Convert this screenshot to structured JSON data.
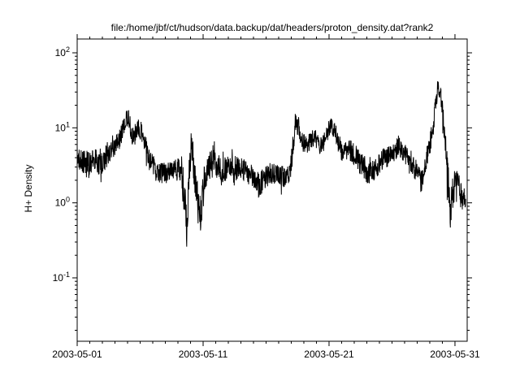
{
  "chart_data": {
    "type": "line",
    "title": "file:/home/jbf/ct/hudson/data.backup/dat/headers/proton_density.dat?rank2",
    "xlabel": "",
    "ylabel": "H+ Density",
    "y_scale": "log",
    "grid": false,
    "legend": false,
    "x_unit": "days since 2003-05-01",
    "x_domain_days": [
      0,
      30.97
    ],
    "y_log10_domain": [
      -1.845,
      2.184
    ],
    "ylim": [
      0.014,
      153
    ],
    "x_ticks": [
      {
        "day": 0,
        "label": "2003-05-01"
      },
      {
        "day": 10,
        "label": "2003-05-11"
      },
      {
        "day": 20,
        "label": "2003-05-21"
      },
      {
        "day": 30,
        "label": "2003-05-31"
      }
    ],
    "y_tick_exponents": [
      -1,
      0,
      1,
      2
    ],
    "colors": {
      "line": "#000000",
      "axes": "#000000",
      "text": "#000000",
      "background": "#ffffff"
    },
    "samples": 1600,
    "noise_seed": 20030531,
    "series": [
      {
        "name": "H+ Density",
        "envelope_day_mean_spread": [
          [
            0.0,
            4.0,
            0.16
          ],
          [
            0.4,
            3.5,
            0.18
          ],
          [
            0.9,
            3.2,
            0.18
          ],
          [
            1.4,
            3.8,
            0.16
          ],
          [
            1.9,
            3.2,
            0.18
          ],
          [
            2.4,
            4.5,
            0.16
          ],
          [
            2.9,
            5.5,
            0.14
          ],
          [
            3.4,
            7.0,
            0.14
          ],
          [
            3.8,
            12.0,
            0.13
          ],
          [
            4.1,
            13.0,
            0.13
          ],
          [
            4.35,
            8.0,
            0.14
          ],
          [
            4.6,
            7.0,
            0.14
          ],
          [
            4.85,
            10.0,
            0.13
          ],
          [
            5.1,
            9.0,
            0.13
          ],
          [
            5.4,
            6.0,
            0.14
          ],
          [
            5.8,
            3.5,
            0.16
          ],
          [
            6.2,
            2.8,
            0.16
          ],
          [
            6.6,
            2.5,
            0.16
          ],
          [
            7.0,
            2.4,
            0.16
          ],
          [
            7.5,
            2.6,
            0.15
          ],
          [
            8.0,
            2.8,
            0.15
          ],
          [
            8.3,
            2.2,
            0.18
          ],
          [
            8.55,
            1.0,
            0.3
          ],
          [
            8.7,
            0.45,
            0.25
          ],
          [
            8.85,
            1.5,
            0.35
          ],
          [
            9.0,
            5.0,
            0.25
          ],
          [
            9.1,
            7.0,
            0.2
          ],
          [
            9.25,
            3.0,
            0.25
          ],
          [
            9.5,
            1.2,
            0.3
          ],
          [
            9.7,
            0.6,
            0.25
          ],
          [
            9.9,
            1.0,
            0.3
          ],
          [
            10.1,
            2.0,
            0.2
          ],
          [
            10.4,
            2.8,
            0.18
          ],
          [
            10.8,
            4.0,
            0.18
          ],
          [
            11.1,
            3.0,
            0.16
          ],
          [
            11.5,
            2.6,
            0.16
          ],
          [
            12.0,
            3.0,
            0.16
          ],
          [
            12.5,
            3.0,
            0.15
          ],
          [
            13.0,
            2.8,
            0.15
          ],
          [
            13.5,
            2.6,
            0.16
          ],
          [
            14.0,
            2.2,
            0.16
          ],
          [
            14.4,
            1.7,
            0.18
          ],
          [
            14.8,
            2.0,
            0.16
          ],
          [
            15.2,
            2.4,
            0.15
          ],
          [
            15.6,
            2.5,
            0.14
          ],
          [
            16.0,
            2.3,
            0.14
          ],
          [
            16.5,
            2.2,
            0.15
          ],
          [
            16.9,
            2.6,
            0.14
          ],
          [
            17.15,
            5.0,
            0.13
          ],
          [
            17.35,
            14.0,
            0.12
          ],
          [
            17.55,
            11.0,
            0.13
          ],
          [
            17.8,
            7.0,
            0.13
          ],
          [
            18.1,
            6.0,
            0.13
          ],
          [
            18.5,
            6.5,
            0.13
          ],
          [
            18.9,
            7.5,
            0.12
          ],
          [
            19.2,
            6.0,
            0.13
          ],
          [
            19.6,
            6.5,
            0.13
          ],
          [
            19.9,
            9.0,
            0.13
          ],
          [
            20.15,
            12.0,
            0.13
          ],
          [
            20.45,
            9.0,
            0.13
          ],
          [
            20.8,
            6.0,
            0.14
          ],
          [
            21.2,
            4.5,
            0.15
          ],
          [
            21.6,
            5.0,
            0.15
          ],
          [
            22.0,
            4.5,
            0.15
          ],
          [
            22.4,
            3.5,
            0.15
          ],
          [
            22.8,
            3.0,
            0.16
          ],
          [
            23.2,
            2.4,
            0.17
          ],
          [
            23.6,
            2.8,
            0.15
          ],
          [
            24.0,
            3.2,
            0.15
          ],
          [
            24.4,
            4.0,
            0.14
          ],
          [
            24.8,
            4.2,
            0.14
          ],
          [
            25.2,
            4.5,
            0.14
          ],
          [
            25.5,
            6.0,
            0.13
          ],
          [
            25.8,
            5.0,
            0.14
          ],
          [
            26.2,
            4.0,
            0.14
          ],
          [
            26.6,
            3.5,
            0.15
          ],
          [
            27.0,
            2.5,
            0.16
          ],
          [
            27.3,
            1.9,
            0.18
          ],
          [
            27.6,
            3.2,
            0.15
          ],
          [
            27.9,
            5.0,
            0.14
          ],
          [
            28.2,
            9.0,
            0.14
          ],
          [
            28.45,
            20.0,
            0.13
          ],
          [
            28.65,
            35.0,
            0.12
          ],
          [
            28.85,
            28.0,
            0.13
          ],
          [
            29.05,
            14.0,
            0.15
          ],
          [
            29.25,
            6.0,
            0.2
          ],
          [
            29.45,
            2.0,
            0.25
          ],
          [
            29.65,
            0.7,
            0.25
          ],
          [
            29.8,
            1.2,
            0.25
          ],
          [
            30.0,
            1.8,
            0.2
          ],
          [
            30.2,
            2.0,
            0.18
          ],
          [
            30.45,
            1.2,
            0.2
          ],
          [
            30.65,
            1.0,
            0.2
          ],
          [
            30.85,
            1.3,
            0.18
          ]
        ]
      }
    ]
  }
}
